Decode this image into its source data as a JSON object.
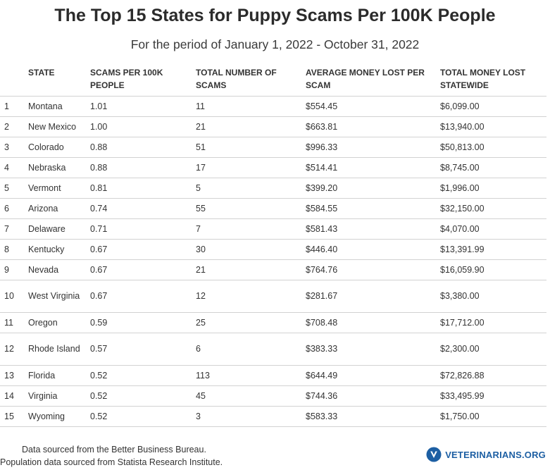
{
  "header": {
    "title": "The Top 15 States for Puppy Scams Per 100K People",
    "subtitle": "For the period of January 1, 2022 - October 31, 2022"
  },
  "chart_data": {
    "type": "table",
    "columns": [
      "",
      "STATE",
      "SCAMS PER 100K PEOPLE",
      "TOTAL NUMBER OF SCAMS",
      "AVERAGE MONEY LOST PER SCAM",
      "TOTAL MONEY LOST STATEWIDE"
    ],
    "rows": [
      [
        "1",
        "Montana",
        "1.01",
        "11",
        "$554.45",
        "$6,099.00"
      ],
      [
        "2",
        "New Mexico",
        "1.00",
        "21",
        "$663.81",
        "$13,940.00"
      ],
      [
        "3",
        "Colorado",
        "0.88",
        "51",
        "$996.33",
        "$50,813.00"
      ],
      [
        "4",
        "Nebraska",
        "0.88",
        "17",
        "$514.41",
        "$8,745.00"
      ],
      [
        "5",
        "Vermont",
        "0.81",
        "5",
        "$399.20",
        "$1,996.00"
      ],
      [
        "6",
        "Arizona",
        "0.74",
        "55",
        "$584.55",
        "$32,150.00"
      ],
      [
        "7",
        "Delaware",
        "0.71",
        "7",
        "$581.43",
        "$4,070.00"
      ],
      [
        "8",
        "Kentucky",
        "0.67",
        "30",
        "$446.40",
        "$13,391.99"
      ],
      [
        "9",
        "Nevada",
        "0.67",
        "21",
        "$764.76",
        "$16,059.90"
      ],
      [
        "10",
        "West Virginia",
        "0.67",
        "12",
        "$281.67",
        "$3,380.00"
      ],
      [
        "11",
        "Oregon",
        "0.59",
        "25",
        "$708.48",
        "$17,712.00"
      ],
      [
        "12",
        "Rhode Island",
        "0.57",
        "6",
        "$383.33",
        "$2,300.00"
      ],
      [
        "13",
        "Florida",
        "0.52",
        "113",
        "$644.49",
        "$72,826.88"
      ],
      [
        "14",
        "Virginia",
        "0.52",
        "45",
        "$744.36",
        "$33,495.99"
      ],
      [
        "15",
        "Wyoming",
        "0.52",
        "3",
        "$583.33",
        "$1,750.00"
      ]
    ]
  },
  "footer": {
    "source_line1": "Data sourced from the Better Business Bureau.",
    "source_line2": "Population data sourced from Statista Research Institute.",
    "brand": "VETERINARIANS.ORG",
    "brand_icon": "v-shield-icon",
    "brand_color": "#1d5fa3"
  }
}
